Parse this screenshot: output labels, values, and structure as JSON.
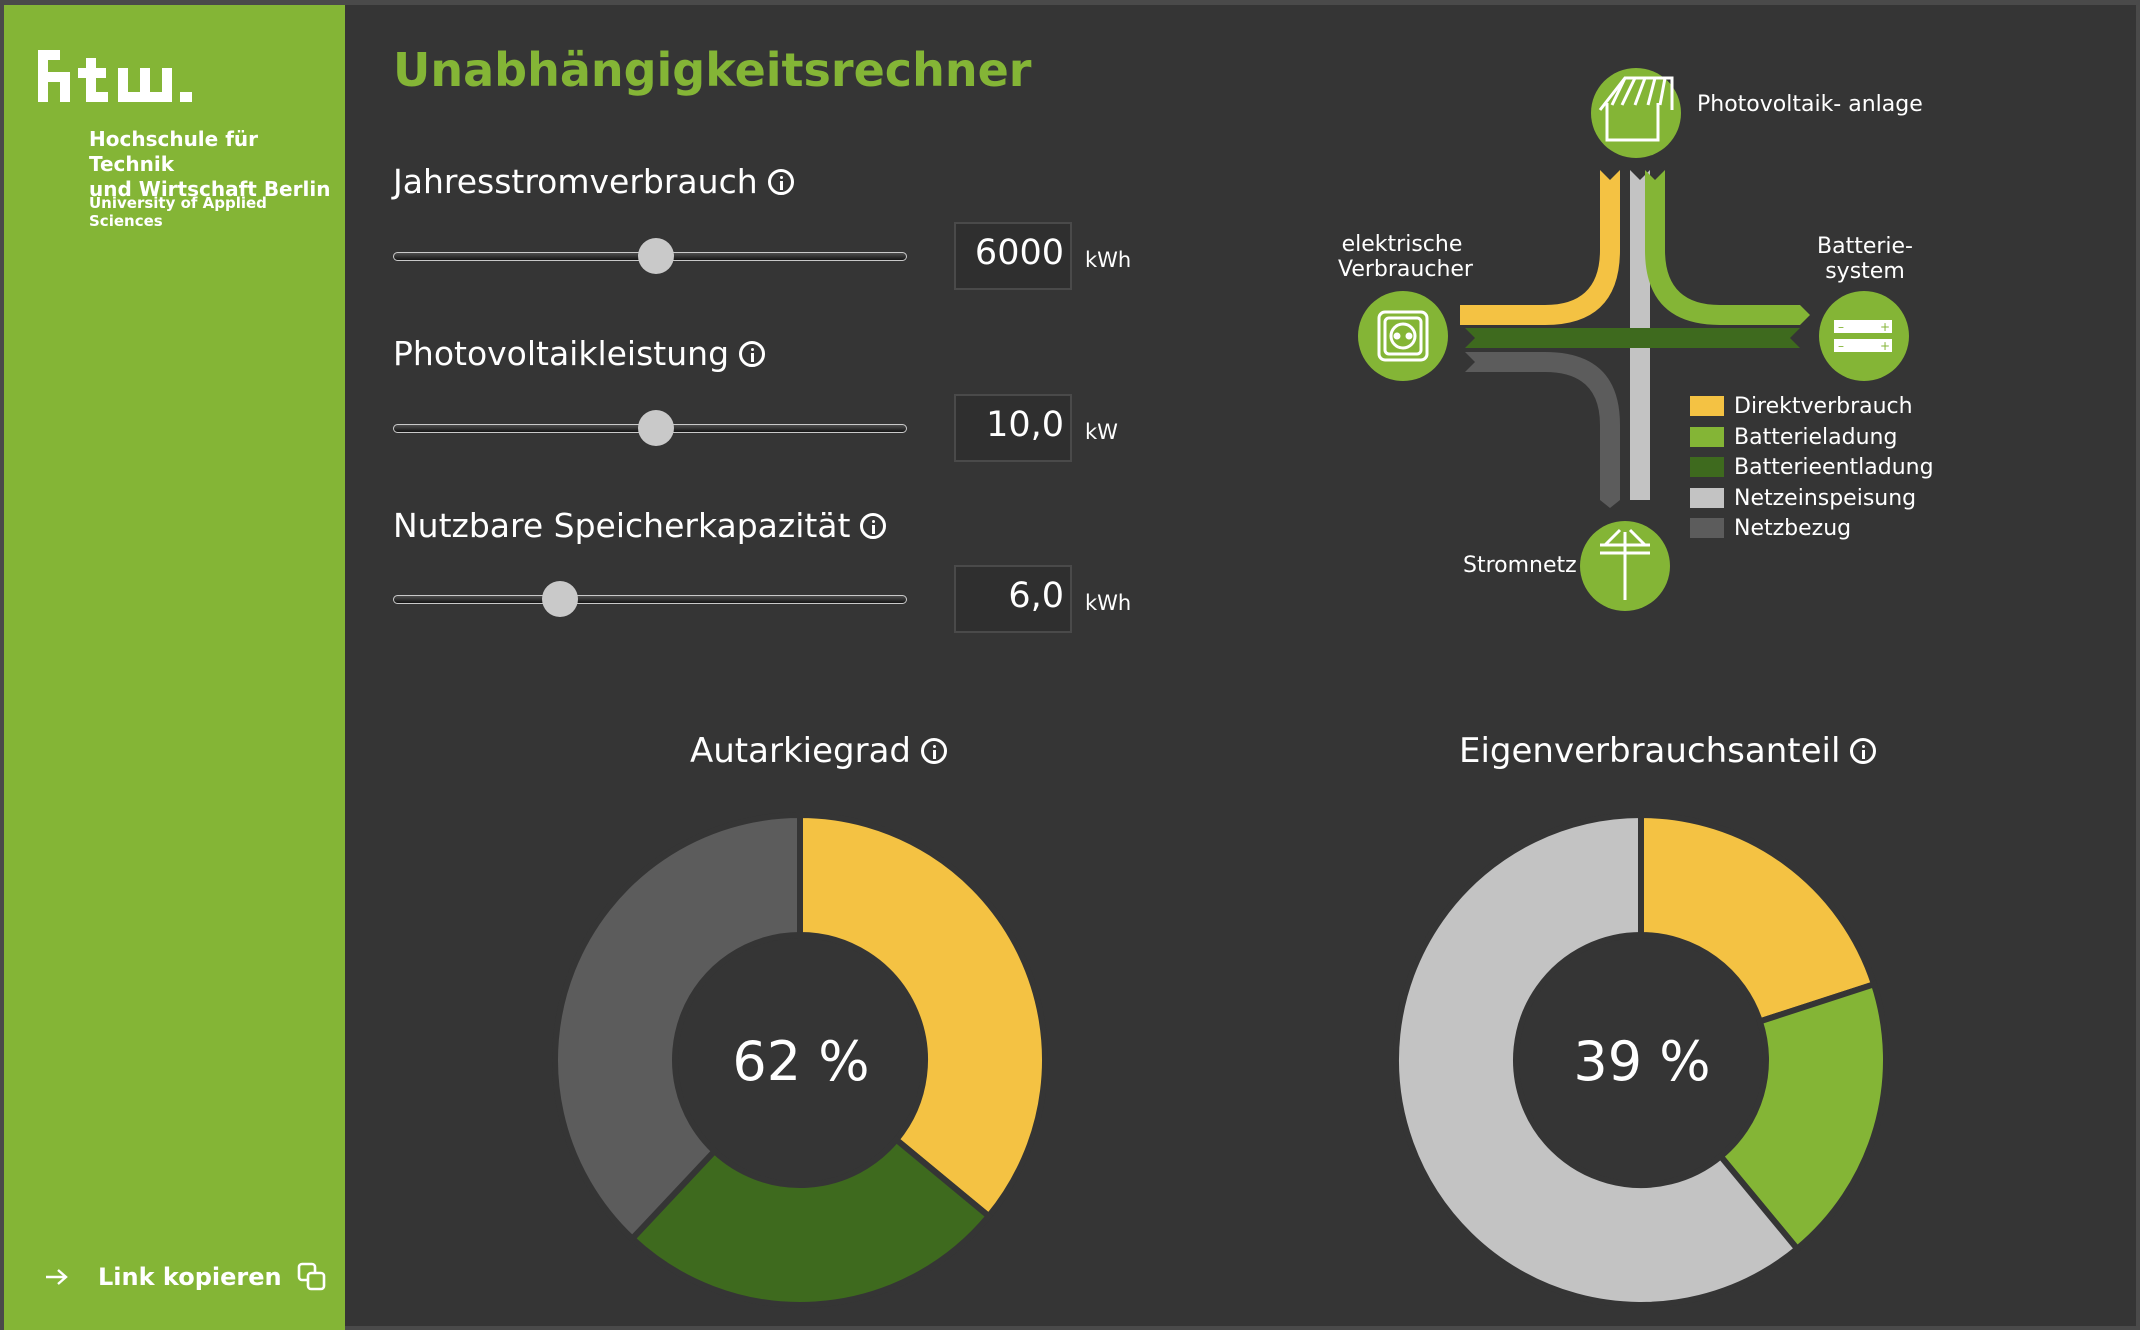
{
  "brand": {
    "logo_text": "htw.",
    "name_line1": "Hochschule für Technik",
    "name_line2": "und Wirtschaft Berlin",
    "subtitle": "University of Applied Sciences"
  },
  "sidebar": {
    "link_label": "Link kopieren"
  },
  "page_title": "Unabhängigkeitsrechner",
  "sliders": [
    {
      "label": "Jahresstromverbrauch",
      "value": "6000",
      "unit": "kWh",
      "position": 0.51
    },
    {
      "label": "Photovoltaikleistung",
      "value": "10,0",
      "unit": "kW",
      "position": 0.51
    },
    {
      "label": "Nutzbare Speicherkapazität",
      "value": "6,0",
      "unit": "kWh",
      "position": 0.31
    }
  ],
  "diagram": {
    "pv_label": "Photovoltaik- anlage",
    "consumer_label": "elektrische Verbraucher",
    "battery_label": "Batterie- system",
    "grid_label": "Stromnetz",
    "legend": [
      {
        "label": "Direktverbrauch",
        "color": "#f4c243"
      },
      {
        "label": "Batterieladung",
        "color": "#84b536"
      },
      {
        "label": "Batterieentladung",
        "color": "#3e6a1e"
      },
      {
        "label": "Netzeinspeisung",
        "color": "#c3c3c3"
      },
      {
        "label": "Netzbezug",
        "color": "#5c5c5c"
      }
    ]
  },
  "chart_data": [
    {
      "type": "pie",
      "title": "Autarkiegrad",
      "center_label": "62 %",
      "categories": [
        "Direktverbrauch",
        "Batterieentladung",
        "Netzbezug"
      ],
      "values": [
        36,
        26,
        38
      ],
      "colors": [
        "#f4c243",
        "#3e6a1e",
        "#5c5c5c"
      ]
    },
    {
      "type": "pie",
      "title": "Eigenverbrauchsanteil",
      "center_label": "39 %",
      "categories": [
        "Direktverbrauch",
        "Batterieladung",
        "Netzeinspeisung"
      ],
      "values": [
        20,
        19,
        61
      ],
      "colors": [
        "#f4c243",
        "#84b536",
        "#c3c3c3"
      ]
    }
  ]
}
